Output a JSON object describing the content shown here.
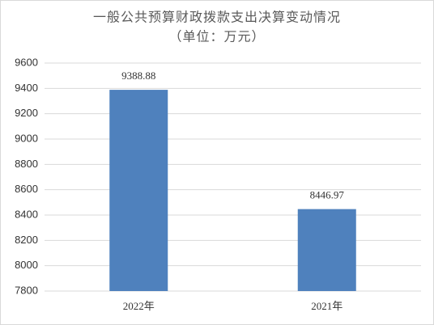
{
  "chart_data": {
    "type": "bar",
    "title": "一般公共预算财政拨款支出决算变动情况",
    "subtitle": "（单位：万元）",
    "categories": [
      "2022年",
      "2021年"
    ],
    "values": [
      9388.88,
      8446.97
    ],
    "color": "#4f81bd",
    "ylim": [
      7800,
      9600
    ],
    "yticks": [
      7800,
      8000,
      8200,
      8400,
      8600,
      8800,
      9000,
      9200,
      9400,
      9600
    ],
    "grid": true
  }
}
